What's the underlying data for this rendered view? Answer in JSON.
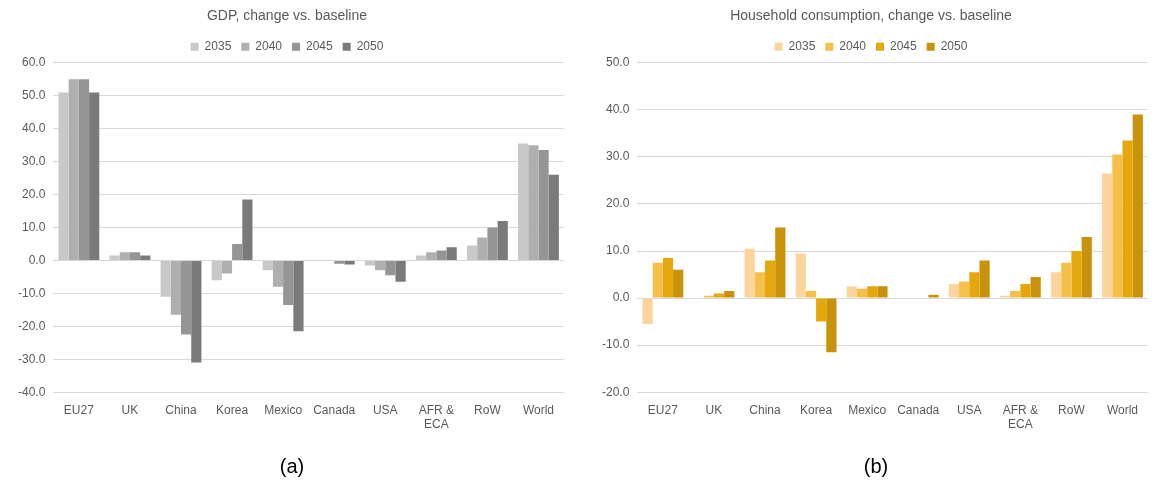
{
  "chart_data": [
    {
      "type": "bar",
      "title": "GDP, change vs. baseline",
      "categories": [
        "EU27",
        "UK",
        "China",
        "Korea",
        "Mexico",
        "Canada",
        "USA",
        "AFR & ECA",
        "RoW",
        "World"
      ],
      "series": [
        {
          "name": "2035",
          "color": "#c8c8c8",
          "values": [
            51,
            1.5,
            -11,
            -6,
            -3,
            null,
            -1.5,
            1.5,
            4.5,
            35.5
          ]
        },
        {
          "name": "2040",
          "color": "#afafaf",
          "values": [
            55,
            2.5,
            -16.5,
            -4,
            -8,
            null,
            -3,
            2.5,
            7,
            35
          ]
        },
        {
          "name": "2045",
          "color": "#959595",
          "values": [
            55,
            2.5,
            -22.5,
            5,
            -13.5,
            -1,
            -4.5,
            3,
            10,
            33.5
          ]
        },
        {
          "name": "2050",
          "color": "#7a7a7a",
          "values": [
            51,
            1.5,
            -31,
            18.5,
            -21.5,
            -1.2,
            -6.5,
            4,
            12,
            26
          ]
        }
      ],
      "ylim": [
        -40,
        60
      ],
      "yticks": [
        {
          "value": -40,
          "label": "-40.0"
        },
        {
          "value": -30,
          "label": "-30.0"
        },
        {
          "value": -20,
          "label": "-20.0"
        },
        {
          "value": -10,
          "label": "-10.0"
        },
        {
          "value": 0,
          "label": "0.0"
        },
        {
          "value": 10,
          "label": "10.0"
        },
        {
          "value": 20,
          "label": "20.0"
        },
        {
          "value": 30,
          "label": "30.0"
        },
        {
          "value": 40,
          "label": "40.0"
        },
        {
          "value": 50,
          "label": "50.0"
        },
        {
          "value": 60,
          "label": "60.0"
        }
      ],
      "grid": "y",
      "legend": "top",
      "annotations": [
        "(a)"
      ]
    },
    {
      "type": "bar",
      "title": "Household consumption, change vs. baseline",
      "categories": [
        "EU27",
        "UK",
        "China",
        "Korea",
        "Mexico",
        "Canada",
        "USA",
        "AFR & ECA",
        "RoW",
        "World"
      ],
      "series": [
        {
          "name": "2035",
          "color": "#fcd59c",
          "values": [
            -5.5,
            null,
            10.5,
            9.5,
            2.5,
            0,
            3,
            0.5,
            5.5,
            26.5
          ]
        },
        {
          "name": "2040",
          "color": "#f5c04a",
          "values": [
            7.5,
            0.5,
            5.5,
            1.5,
            2,
            0,
            3.5,
            1.5,
            7.5,
            30.5
          ]
        },
        {
          "name": "2045",
          "color": "#e5a80c",
          "values": [
            8.5,
            1,
            8,
            -5,
            2.5,
            null,
            5.5,
            3,
            10,
            33.5
          ]
        },
        {
          "name": "2050",
          "color": "#c8920a",
          "values": [
            6,
            1.5,
            15,
            -11.5,
            2.5,
            0.7,
            8,
            4.5,
            13,
            39
          ]
        }
      ],
      "ylim": [
        -20,
        50
      ],
      "yticks": [
        {
          "value": -20,
          "label": "-20.0"
        },
        {
          "value": -10,
          "label": "-10.0"
        },
        {
          "value": 0,
          "label": "0.0"
        },
        {
          "value": 10,
          "label": "10.0"
        },
        {
          "value": 20,
          "label": "20.0"
        },
        {
          "value": 30,
          "label": "30.0"
        },
        {
          "value": 40,
          "label": "40.0"
        },
        {
          "value": 50,
          "label": "50.0"
        }
      ],
      "grid": "y",
      "legend": "top",
      "annotations": [
        "(b)"
      ]
    }
  ]
}
